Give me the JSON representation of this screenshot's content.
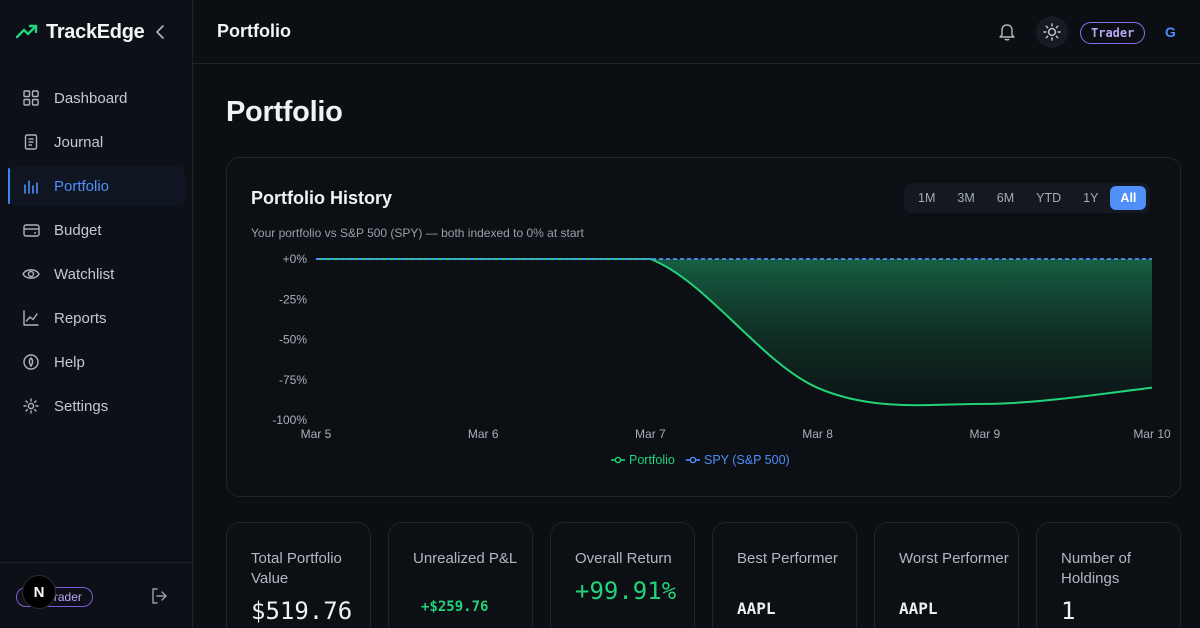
{
  "app": {
    "name": "TrackEdge"
  },
  "sidebar": {
    "items": [
      {
        "label": "Dashboard",
        "icon": "grid-icon"
      },
      {
        "label": "Journal",
        "icon": "journal-icon"
      },
      {
        "label": "Portfolio",
        "icon": "bar-chart-icon",
        "active": true
      },
      {
        "label": "Budget",
        "icon": "wallet-icon"
      },
      {
        "label": "Watchlist",
        "icon": "eye-icon"
      },
      {
        "label": "Reports",
        "icon": "line-chart-icon"
      },
      {
        "label": "Help",
        "icon": "help-icon"
      },
      {
        "label": "Settings",
        "icon": "gear-icon"
      }
    ],
    "user_badge": "Trader",
    "avatar_letter": "N"
  },
  "topbar": {
    "title": "Portfolio",
    "role_badge": "Trader",
    "avatar_letter": "G"
  },
  "page": {
    "title": "Portfolio"
  },
  "history": {
    "title": "Portfolio History",
    "subtitle": "Your portfolio vs S&P 500 (SPY) — both indexed to 0% at start",
    "ranges": [
      "1M",
      "3M",
      "6M",
      "YTD",
      "1Y",
      "All"
    ],
    "active_range": "All"
  },
  "chart_data": {
    "type": "line",
    "x": [
      "Mar 5",
      "Mar 6",
      "Mar 7",
      "Mar 8",
      "Mar 9",
      "Mar 10"
    ],
    "ylim": [
      -100,
      0
    ],
    "yticks": [
      "+0%",
      "-25%",
      "-50%",
      "-75%",
      "-100%"
    ],
    "series": [
      {
        "name": "Portfolio",
        "color": "#22d37a",
        "values": [
          0,
          0,
          0,
          -80,
          -90,
          -80
        ]
      },
      {
        "name": "SPY (S&P 500)",
        "color": "#4f8ff7",
        "values": [
          0,
          0,
          0,
          0,
          0,
          0
        ]
      }
    ],
    "grid": false,
    "legend": "bottom"
  },
  "stats": [
    {
      "label": "Total Portfolio Value",
      "value": "$519.76",
      "color": "#eef0f2"
    },
    {
      "label": "Unrealized P&L",
      "value": "+$259.76",
      "color": "#22d37a"
    },
    {
      "label": "Overall Return",
      "value": "+99.91%",
      "color": "#22d37a"
    },
    {
      "label": "Best Performer",
      "value": "AAPL",
      "color": "#eef0f2"
    },
    {
      "label": "Worst Performer",
      "value": "AAPL",
      "color": "#eef0f2"
    },
    {
      "label": "Number of Holdings",
      "value": "1",
      "color": "#eef0f2"
    }
  ]
}
